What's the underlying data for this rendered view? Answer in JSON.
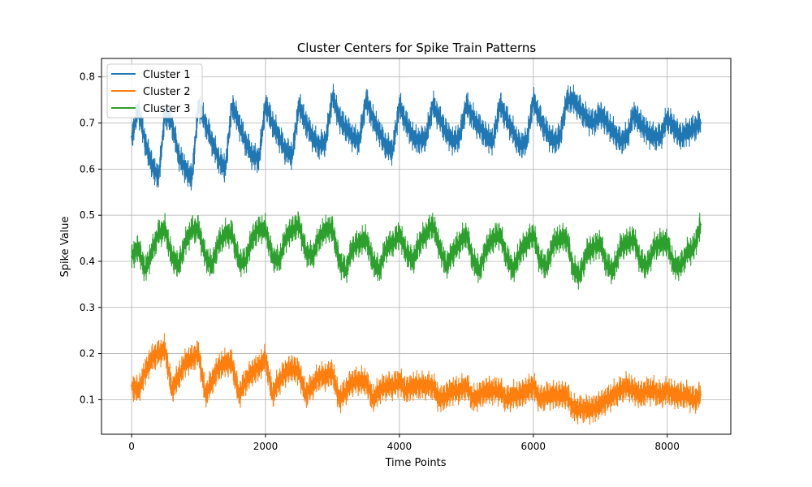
{
  "chart_data": {
    "type": "line",
    "title": "Cluster Centers for Spike Train Patterns",
    "xlabel": "Time Points",
    "ylabel": "Spike Value",
    "xlim": [
      -450,
      8950
    ],
    "ylim": [
      0.025,
      0.84
    ],
    "xticks": [
      0,
      2000,
      4000,
      6000,
      8000
    ],
    "xtick_labels": [
      "0",
      "2000",
      "4000",
      "6000",
      "8000"
    ],
    "yticks": [
      0.1,
      0.2,
      0.3,
      0.4,
      0.5,
      0.6,
      0.7,
      0.8
    ],
    "ytick_labels": [
      "0.1",
      "0.2",
      "0.3",
      "0.4",
      "0.5",
      "0.6",
      "0.7",
      "0.8"
    ],
    "grid": true,
    "legend_position": "top-left",
    "series": [
      {
        "name": "Cluster 1",
        "color": "#1f77b4",
        "x": [
          0,
          100,
          200,
          300,
          400,
          500,
          600,
          700,
          800,
          900,
          1000,
          1100,
          1200,
          1300,
          1400,
          1500,
          1600,
          1700,
          1800,
          1900,
          2000,
          2100,
          2200,
          2300,
          2400,
          2500,
          2600,
          2700,
          2800,
          2900,
          3000,
          3100,
          3200,
          3300,
          3400,
          3500,
          3600,
          3700,
          3800,
          3900,
          4000,
          4100,
          4200,
          4300,
          4400,
          4500,
          4600,
          4700,
          4800,
          4900,
          5000,
          5100,
          5200,
          5300,
          5400,
          5500,
          5600,
          5700,
          5800,
          5900,
          6000,
          6100,
          6200,
          6300,
          6400,
          6500,
          6600,
          6700,
          6800,
          6900,
          7000,
          7100,
          7200,
          7300,
          7400,
          7500,
          7600,
          7700,
          7800,
          7900,
          8000,
          8100,
          8200,
          8300,
          8400,
          8500
        ],
        "values": [
          0.67,
          0.73,
          0.66,
          0.61,
          0.58,
          0.72,
          0.7,
          0.63,
          0.6,
          0.58,
          0.74,
          0.7,
          0.66,
          0.62,
          0.6,
          0.74,
          0.7,
          0.66,
          0.63,
          0.62,
          0.74,
          0.7,
          0.67,
          0.64,
          0.63,
          0.74,
          0.7,
          0.67,
          0.65,
          0.66,
          0.76,
          0.71,
          0.69,
          0.67,
          0.66,
          0.75,
          0.71,
          0.68,
          0.65,
          0.64,
          0.74,
          0.7,
          0.67,
          0.66,
          0.67,
          0.74,
          0.71,
          0.68,
          0.66,
          0.67,
          0.74,
          0.71,
          0.69,
          0.67,
          0.66,
          0.74,
          0.71,
          0.68,
          0.65,
          0.66,
          0.75,
          0.71,
          0.68,
          0.66,
          0.67,
          0.75,
          0.75,
          0.73,
          0.71,
          0.7,
          0.72,
          0.7,
          0.68,
          0.66,
          0.67,
          0.72,
          0.7,
          0.68,
          0.67,
          0.67,
          0.71,
          0.69,
          0.67,
          0.68,
          0.69,
          0.7
        ]
      },
      {
        "name": "Cluster 2",
        "color": "#ff7f0e",
        "x": [
          0,
          100,
          200,
          300,
          400,
          500,
          600,
          700,
          800,
          900,
          1000,
          1100,
          1200,
          1300,
          1400,
          1500,
          1600,
          1700,
          1800,
          1900,
          2000,
          2100,
          2200,
          2300,
          2400,
          2500,
          2600,
          2700,
          2800,
          2900,
          3000,
          3100,
          3200,
          3300,
          3400,
          3500,
          3600,
          3700,
          3800,
          3900,
          4000,
          4100,
          4200,
          4300,
          4400,
          4500,
          4600,
          4700,
          4800,
          4900,
          5000,
          5100,
          5200,
          5300,
          5400,
          5500,
          5600,
          5700,
          5800,
          5900,
          6000,
          6100,
          6200,
          6300,
          6400,
          6500,
          6600,
          6700,
          6800,
          6900,
          7000,
          7100,
          7200,
          7300,
          7400,
          7500,
          7600,
          7700,
          7800,
          7900,
          8000,
          8100,
          8200,
          8300,
          8400,
          8500
        ],
        "values": [
          0.13,
          0.12,
          0.16,
          0.19,
          0.2,
          0.21,
          0.12,
          0.15,
          0.18,
          0.19,
          0.2,
          0.11,
          0.14,
          0.17,
          0.18,
          0.18,
          0.11,
          0.14,
          0.16,
          0.17,
          0.19,
          0.11,
          0.14,
          0.16,
          0.17,
          0.16,
          0.11,
          0.13,
          0.15,
          0.15,
          0.16,
          0.1,
          0.12,
          0.14,
          0.14,
          0.14,
          0.1,
          0.12,
          0.13,
          0.13,
          0.14,
          0.12,
          0.13,
          0.13,
          0.13,
          0.13,
          0.1,
          0.11,
          0.12,
          0.12,
          0.13,
          0.1,
          0.11,
          0.12,
          0.12,
          0.12,
          0.1,
          0.11,
          0.11,
          0.12,
          0.13,
          0.1,
          0.11,
          0.11,
          0.11,
          0.11,
          0.08,
          0.08,
          0.08,
          0.08,
          0.09,
          0.1,
          0.11,
          0.12,
          0.13,
          0.12,
          0.11,
          0.12,
          0.12,
          0.11,
          0.12,
          0.11,
          0.11,
          0.11,
          0.1,
          0.11
        ]
      },
      {
        "name": "Cluster 3",
        "color": "#2ca02c",
        "x": [
          0,
          100,
          200,
          300,
          400,
          500,
          600,
          700,
          800,
          900,
          1000,
          1100,
          1200,
          1300,
          1400,
          1500,
          1600,
          1700,
          1800,
          1900,
          2000,
          2100,
          2200,
          2300,
          2400,
          2500,
          2600,
          2700,
          2800,
          2900,
          3000,
          3100,
          3200,
          3300,
          3400,
          3500,
          3600,
          3700,
          3800,
          3900,
          4000,
          4100,
          4200,
          4300,
          4400,
          4500,
          4600,
          4700,
          4800,
          4900,
          5000,
          5100,
          5200,
          5300,
          5400,
          5500,
          5600,
          5700,
          5800,
          5900,
          6000,
          6100,
          6200,
          6300,
          6400,
          6500,
          6600,
          6700,
          6800,
          6900,
          7000,
          7100,
          7200,
          7300,
          7400,
          7500,
          7600,
          7700,
          7800,
          7900,
          8000,
          8100,
          8200,
          8300,
          8400,
          8500
        ],
        "values": [
          0.41,
          0.43,
          0.38,
          0.42,
          0.46,
          0.47,
          0.41,
          0.39,
          0.44,
          0.47,
          0.47,
          0.41,
          0.39,
          0.44,
          0.46,
          0.46,
          0.4,
          0.4,
          0.45,
          0.47,
          0.47,
          0.41,
          0.4,
          0.45,
          0.47,
          0.48,
          0.42,
          0.41,
          0.45,
          0.47,
          0.47,
          0.4,
          0.38,
          0.43,
          0.44,
          0.45,
          0.4,
          0.38,
          0.43,
          0.44,
          0.46,
          0.42,
          0.4,
          0.44,
          0.46,
          0.48,
          0.43,
          0.39,
          0.42,
          0.44,
          0.46,
          0.4,
          0.38,
          0.43,
          0.45,
          0.46,
          0.41,
          0.38,
          0.42,
          0.44,
          0.46,
          0.4,
          0.39,
          0.44,
          0.45,
          0.45,
          0.38,
          0.37,
          0.42,
          0.43,
          0.44,
          0.39,
          0.38,
          0.43,
          0.44,
          0.45,
          0.4,
          0.39,
          0.43,
          0.44,
          0.44,
          0.39,
          0.39,
          0.42,
          0.43,
          0.48
        ]
      }
    ]
  }
}
